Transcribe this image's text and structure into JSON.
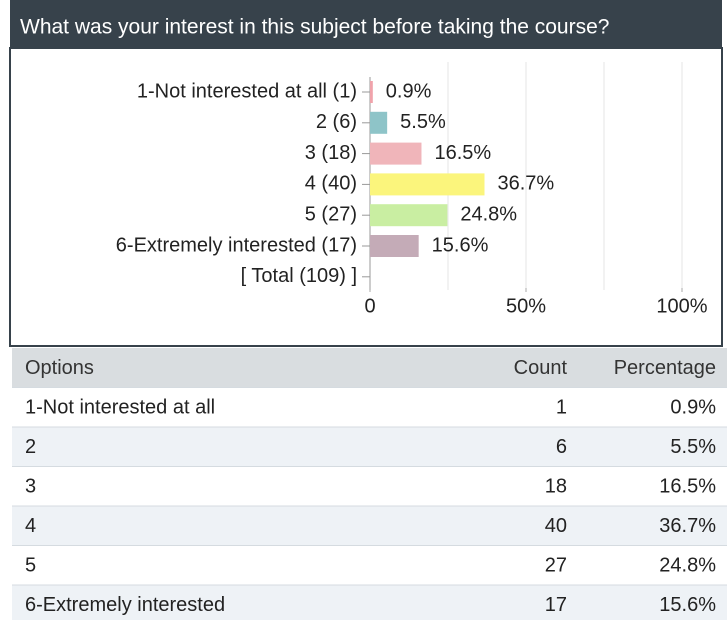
{
  "chart_data": {
    "type": "bar",
    "orientation": "horizontal",
    "title": "What was your interest in this subject before taking the course?",
    "categories": [
      "1-Not interested at all (1)",
      "2 (6)",
      "3 (18)",
      "4 (40)",
      "5 (27)",
      "6-Extremely interested (17)",
      "[ Total (109) ]"
    ],
    "values": [
      0.9,
      5.5,
      16.5,
      36.7,
      24.8,
      15.6,
      null
    ],
    "value_labels": [
      "0.9%",
      "5.5%",
      "16.5%",
      "36.7%",
      "24.8%",
      "15.6%",
      null
    ],
    "colors": [
      "#f0a3ab",
      "#8ec4c8",
      "#f0b5ba",
      "#fbf57c",
      "#c9eea2",
      "#c4abb7",
      null
    ],
    "xlim": [
      0,
      100
    ],
    "xticks": [
      0,
      {
        "value": 50,
        "label": "50%"
      },
      {
        "value": 100,
        "label": "100%"
      }
    ],
    "xgrid": [
      0,
      25,
      50,
      75,
      100
    ]
  },
  "table": {
    "columns": [
      "Options",
      "Count",
      "Percentage"
    ],
    "rows": [
      [
        "1-Not interested at all",
        "1",
        "0.9%"
      ],
      [
        "2",
        "6",
        "5.5%"
      ],
      [
        "3",
        "18",
        "16.5%"
      ],
      [
        "4",
        "40",
        "36.7%"
      ],
      [
        "5",
        "27",
        "24.8%"
      ],
      [
        "6-Extremely interested",
        "17",
        "15.6%"
      ]
    ]
  }
}
